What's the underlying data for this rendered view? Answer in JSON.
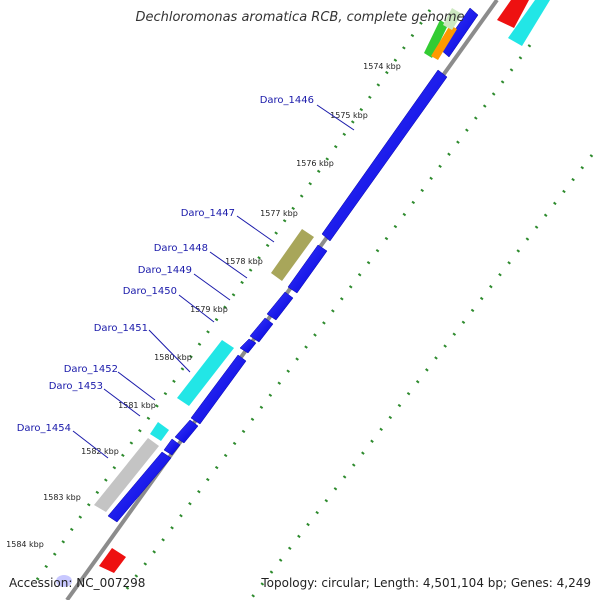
{
  "title": "Dechloromonas aromatica RCB, complete genome",
  "accession_label": "Accession: ",
  "accession": "NC_007298",
  "summary": "Topology: circular; Length: 4,501,104 bp; Genes: 4,249",
  "colors": {
    "forward_strand": "#0000ee",
    "gene_label": "#1a1aaa",
    "tick_dots": "#2e8b2e",
    "backbone": "#8c8c8c",
    "cyan_feature": "#22e6e6",
    "olive_feature": "#a8a65a",
    "gray_feature": "#c4c4c4",
    "red_feature": "#ee1111",
    "orange_feature": "#ff9900",
    "green_feature": "#33cc33"
  },
  "scale": {
    "unit": "kbp",
    "ticks": [
      "1574 kbp",
      "1575 kbp",
      "1576 kbp",
      "1577 kbp",
      "1578 kbp",
      "1579 kbp",
      "1580 kbp",
      "1581 kbp",
      "1582 kbp",
      "1583 kbp",
      "1584 kbp"
    ]
  },
  "genes": [
    {
      "label": "Daro_1446"
    },
    {
      "label": "Daro_1447"
    },
    {
      "label": "Daro_1448"
    },
    {
      "label": "Daro_1449"
    },
    {
      "label": "Daro_1450"
    },
    {
      "label": "Daro_1451"
    },
    {
      "label": "Daro_1452"
    },
    {
      "label": "Daro_1453"
    },
    {
      "label": "Daro_1454"
    }
  ]
}
